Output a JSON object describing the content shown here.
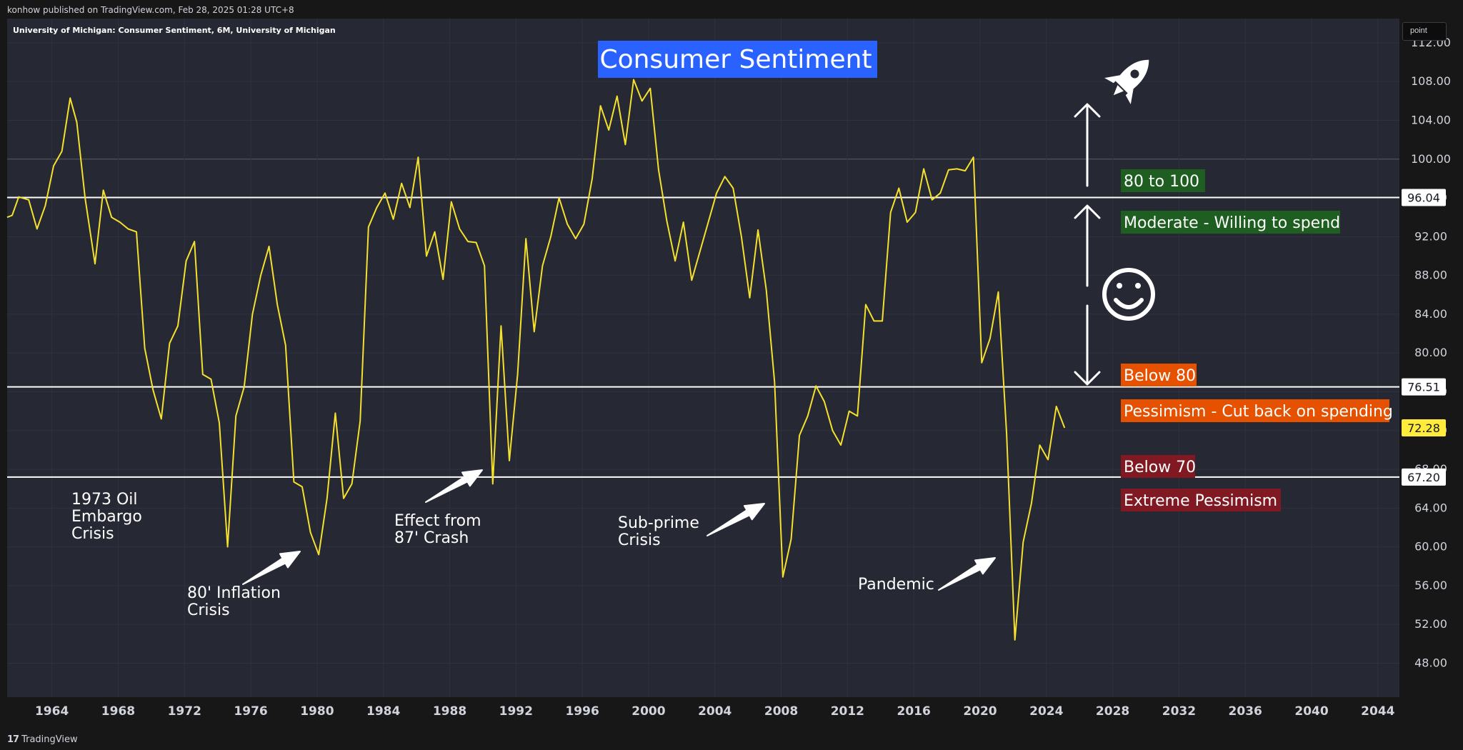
{
  "header": {
    "publisher": "konhow published on TradingView.com, Feb 28, 2025 01:28 UTC+8"
  },
  "footer": {
    "brand_mark": "17",
    "brand": "TradingView"
  },
  "unit_label": "point",
  "chart_data": {
    "type": "line",
    "symbol_label": "University of Michigan: Consumer Sentiment, 6M, University of Michigan",
    "title": "Consumer Sentiment",
    "ylim": [
      44.5,
      114.5
    ],
    "xlim": [
      1961.3,
      2045.3
    ],
    "y_ticks": [
      "112.00",
      "108.00",
      "104.00",
      "100.00",
      "96.00",
      "92.00",
      "88.00",
      "84.00",
      "80.00",
      "76.00",
      "72.00",
      "68.00",
      "64.00",
      "60.00",
      "56.00",
      "52.00",
      "48.00"
    ],
    "x_ticks": [
      "1964",
      "1968",
      "1972",
      "1976",
      "1980",
      "1984",
      "1988",
      "1992",
      "1996",
      "2000",
      "2004",
      "2008",
      "2012",
      "2016",
      "2020",
      "2024",
      "2028",
      "2032",
      "2036",
      "2040",
      "2044"
    ],
    "horizontal_lines": [
      {
        "value": 96.04,
        "label": "96.04"
      },
      {
        "value": 76.51,
        "label": "76.51"
      },
      {
        "value": 67.2,
        "label": "67.20"
      }
    ],
    "last_value": {
      "value": 72.28,
      "label": "72.28"
    },
    "series": [
      {
        "color": "#f5e12d",
        "points": [
          [
            1961.3,
            94.0
          ],
          [
            1961.6,
            94.2
          ],
          [
            1962.0,
            96.1
          ],
          [
            1962.6,
            95.8
          ],
          [
            1963.1,
            92.8
          ],
          [
            1963.6,
            95.2
          ],
          [
            1964.1,
            99.3
          ],
          [
            1964.6,
            100.8
          ],
          [
            1965.1,
            106.3
          ],
          [
            1965.5,
            103.8
          ],
          [
            1966.0,
            96.0
          ],
          [
            1966.6,
            89.2
          ],
          [
            1967.1,
            96.8
          ],
          [
            1967.6,
            94.0
          ],
          [
            1968.1,
            93.5
          ],
          [
            1968.6,
            92.8
          ],
          [
            1969.1,
            92.5
          ],
          [
            1969.6,
            80.5
          ],
          [
            1970.1,
            76.2
          ],
          [
            1970.6,
            73.2
          ],
          [
            1971.1,
            81.0
          ],
          [
            1971.6,
            82.8
          ],
          [
            1972.1,
            89.5
          ],
          [
            1972.6,
            91.5
          ],
          [
            1973.1,
            77.8
          ],
          [
            1973.6,
            77.3
          ],
          [
            1974.1,
            72.8
          ],
          [
            1974.6,
            60.0
          ],
          [
            1975.1,
            73.5
          ],
          [
            1975.6,
            76.5
          ],
          [
            1976.1,
            84.0
          ],
          [
            1976.6,
            88.0
          ],
          [
            1977.1,
            91.0
          ],
          [
            1977.6,
            85.0
          ],
          [
            1978.1,
            80.8
          ],
          [
            1978.6,
            66.7
          ],
          [
            1979.1,
            66.2
          ],
          [
            1979.6,
            61.5
          ],
          [
            1980.1,
            59.2
          ],
          [
            1980.6,
            65.0
          ],
          [
            1981.1,
            73.8
          ],
          [
            1981.6,
            65.0
          ],
          [
            1982.1,
            66.5
          ],
          [
            1982.6,
            73.0
          ],
          [
            1983.1,
            93.0
          ],
          [
            1983.6,
            95.0
          ],
          [
            1984.1,
            96.5
          ],
          [
            1984.6,
            93.8
          ],
          [
            1985.1,
            97.5
          ],
          [
            1985.6,
            95.0
          ],
          [
            1986.1,
            100.2
          ],
          [
            1986.6,
            90.0
          ],
          [
            1987.1,
            92.5
          ],
          [
            1987.6,
            87.6
          ],
          [
            1988.1,
            95.6
          ],
          [
            1988.6,
            92.8
          ],
          [
            1989.1,
            91.5
          ],
          [
            1989.6,
            91.4
          ],
          [
            1990.1,
            89.0
          ],
          [
            1990.6,
            66.5
          ],
          [
            1991.1,
            82.8
          ],
          [
            1991.6,
            68.9
          ],
          [
            1992.1,
            77.8
          ],
          [
            1992.6,
            91.8
          ],
          [
            1993.1,
            82.2
          ],
          [
            1993.6,
            89.0
          ],
          [
            1994.1,
            92.0
          ],
          [
            1994.6,
            96.0
          ],
          [
            1995.1,
            93.3
          ],
          [
            1995.6,
            91.8
          ],
          [
            1996.1,
            93.3
          ],
          [
            1996.6,
            98.0
          ],
          [
            1997.1,
            105.5
          ],
          [
            1997.6,
            103.0
          ],
          [
            1998.1,
            106.5
          ],
          [
            1998.6,
            101.5
          ],
          [
            1999.1,
            108.2
          ],
          [
            1999.6,
            106.0
          ],
          [
            2000.1,
            107.3
          ],
          [
            2000.6,
            98.9
          ],
          [
            2001.1,
            93.6
          ],
          [
            2001.6,
            89.5
          ],
          [
            2002.1,
            93.5
          ],
          [
            2002.6,
            87.5
          ],
          [
            2003.1,
            90.5
          ],
          [
            2003.6,
            93.5
          ],
          [
            2004.1,
            96.5
          ],
          [
            2004.6,
            98.2
          ],
          [
            2005.1,
            97.0
          ],
          [
            2005.6,
            92.0
          ],
          [
            2006.1,
            85.7
          ],
          [
            2006.6,
            92.7
          ],
          [
            2007.1,
            86.5
          ],
          [
            2007.6,
            77.0
          ],
          [
            2008.1,
            56.9
          ],
          [
            2008.6,
            60.8
          ],
          [
            2009.1,
            71.5
          ],
          [
            2009.6,
            73.5
          ],
          [
            2010.1,
            76.6
          ],
          [
            2010.6,
            75.0
          ],
          [
            2011.1,
            72.0
          ],
          [
            2011.6,
            70.5
          ],
          [
            2012.1,
            74.0
          ],
          [
            2012.6,
            73.5
          ],
          [
            2013.1,
            85.0
          ],
          [
            2013.6,
            83.3
          ],
          [
            2014.1,
            83.3
          ],
          [
            2014.6,
            94.5
          ],
          [
            2015.1,
            97.0
          ],
          [
            2015.6,
            93.5
          ],
          [
            2016.1,
            94.5
          ],
          [
            2016.6,
            99.0
          ],
          [
            2017.1,
            95.8
          ],
          [
            2017.6,
            96.5
          ],
          [
            2018.1,
            98.9
          ],
          [
            2018.6,
            99.0
          ],
          [
            2019.1,
            98.8
          ],
          [
            2019.6,
            100.2
          ],
          [
            2020.1,
            79.0
          ],
          [
            2020.6,
            81.5
          ],
          [
            2021.1,
            86.3
          ],
          [
            2021.6,
            71.7
          ],
          [
            2022.1,
            50.4
          ],
          [
            2022.6,
            60.5
          ],
          [
            2023.1,
            64.5
          ],
          [
            2023.6,
            70.5
          ],
          [
            2024.1,
            69.0
          ],
          [
            2024.6,
            74.5
          ],
          [
            2025.1,
            72.28
          ]
        ]
      }
    ],
    "annotations": [
      {
        "text": "1973 Oil\nEmbargo\nCrisis"
      },
      {
        "text": "80' Inflation\nCrisis"
      },
      {
        "text": "Effect from\n87' Crash"
      },
      {
        "text": "Sub-prime\nCrisis"
      },
      {
        "text": "Pandemic"
      }
    ],
    "zone_labels": [
      {
        "text": "80 to 100",
        "color": "#1e5e20"
      },
      {
        "text": "Moderate - Willing to spend",
        "color": "#1e5e20"
      },
      {
        "text": "Below 80",
        "color": "#e65100"
      },
      {
        "text": "Pessimism - Cut back on spending",
        "color": "#e65100"
      },
      {
        "text": "Below 70",
        "color": "#801922"
      },
      {
        "text": "Extreme Pessimism",
        "color": "#801922"
      }
    ],
    "icons": [
      "rocket-icon",
      "smiley-icon"
    ],
    "grid": true,
    "colors": {
      "background": "#262833",
      "line": "#f5e12d",
      "title_bg": "#2962ff",
      "last_value_bg": "#ffeb3b",
      "grid": "#2f3240"
    }
  }
}
